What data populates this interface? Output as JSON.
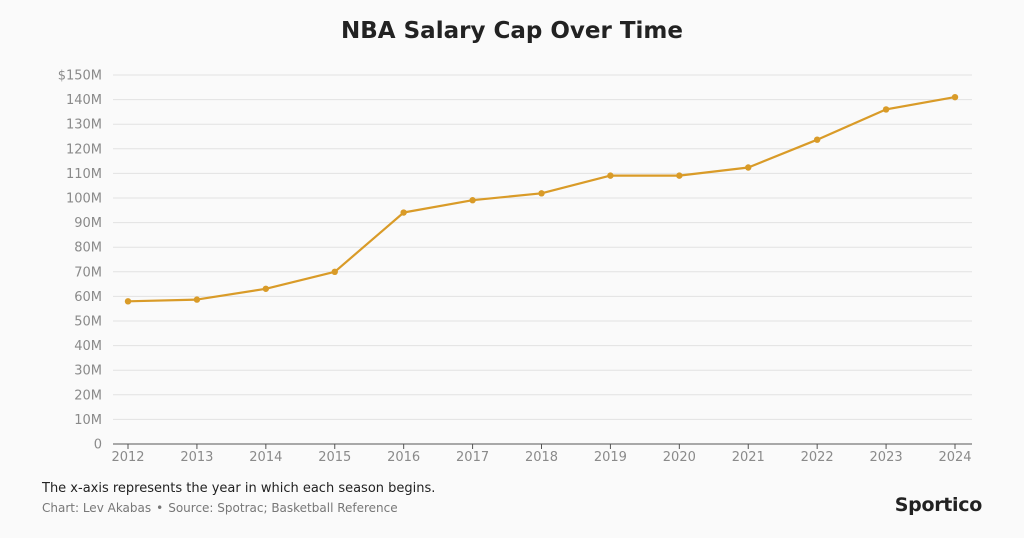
{
  "chart_data": {
    "type": "line",
    "title": "NBA Salary Cap Over Time",
    "xlabel": "",
    "ylabel": "",
    "ylim": [
      0,
      150
    ],
    "y_ticks": [
      0,
      10,
      20,
      30,
      40,
      50,
      60,
      70,
      80,
      90,
      100,
      110,
      120,
      130,
      140,
      150
    ],
    "y_tick_labels": [
      "0",
      "10M",
      "20M",
      "30M",
      "40M",
      "50M",
      "60M",
      "70M",
      "80M",
      "90M",
      "100M",
      "110M",
      "120M",
      "130M",
      "140M",
      "$150M"
    ],
    "categories": [
      "2012",
      "2013",
      "2014",
      "2015",
      "2016",
      "2017",
      "2018",
      "2019",
      "2020",
      "2021",
      "2022",
      "2023",
      "2024"
    ],
    "series": [
      {
        "name": "NBA Salary Cap",
        "color": "#d99b28",
        "values": [
          58.0,
          58.7,
          63.1,
          70.0,
          94.1,
          99.1,
          101.9,
          109.1,
          109.1,
          112.4,
          123.7,
          136.0,
          141.0
        ]
      }
    ],
    "grid": true,
    "note": "The x-axis represents the year in which each season begins.",
    "credit_chart": "Chart: Lev Akabas",
    "credit_separator": "•",
    "credit_source": "Source: Spotrac; Basketball Reference",
    "brand": "Sportico"
  }
}
